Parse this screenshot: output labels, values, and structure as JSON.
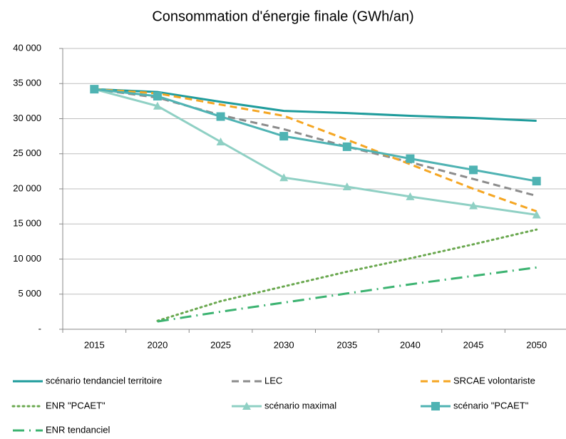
{
  "chart_data": {
    "type": "line",
    "title": "Consommation d'énergie finale (GWh/an)",
    "categories": [
      "2015",
      "2020",
      "2025",
      "2030",
      "2035",
      "2040",
      "2045",
      "2050"
    ],
    "series": [
      {
        "name": "scénario tendanciel territoire",
        "color": "#1f9c9c",
        "style": "solid",
        "values": [
          34200,
          33800,
          32400,
          31100,
          30800,
          30400,
          30100,
          29700
        ]
      },
      {
        "name": "LEC",
        "color": "#8c8c8c",
        "style": "dashed",
        "values": [
          34200,
          33000,
          30500,
          28500,
          26000,
          23800,
          21400,
          19000
        ]
      },
      {
        "name": "SRCAE volontariste",
        "color": "#f5a623",
        "style": "dashed",
        "values": [
          34200,
          33600,
          32000,
          30400,
          27000,
          23500,
          20000,
          16800
        ]
      },
      {
        "name": "ENR \"PCAET\"",
        "color": "#6aa84f",
        "style": "dotted",
        "values": [
          null,
          1200,
          4000,
          6100,
          8200,
          10100,
          12100,
          14200
        ]
      },
      {
        "name": "scénario maximal",
        "color": "#8fd0c4",
        "style": "solid",
        "marker": "triangle",
        "values": [
          34200,
          31800,
          26700,
          21600,
          20300,
          18900,
          17600,
          16300
        ]
      },
      {
        "name": "scénario \"PCAET\"",
        "color": "#4fb3b3",
        "style": "solid",
        "marker": "square",
        "values": [
          34200,
          33200,
          30300,
          27500,
          26000,
          24300,
          22700,
          21100
        ]
      },
      {
        "name": "ENR tendanciel",
        "color": "#3cb371",
        "style": "dashdot",
        "values": [
          null,
          1100,
          2500,
          3800,
          5100,
          6400,
          7600,
          8800
        ]
      }
    ],
    "ylim": [
      0,
      40000
    ],
    "yticks": [
      {
        "value": 0,
        "label": "-"
      },
      {
        "value": 5000,
        "label": "5 000"
      },
      {
        "value": 10000,
        "label": "10 000"
      },
      {
        "value": 15000,
        "label": "15 000"
      },
      {
        "value": 20000,
        "label": "20 000"
      },
      {
        "value": 25000,
        "label": "25 000"
      },
      {
        "value": 30000,
        "label": "30 000"
      },
      {
        "value": 35000,
        "label": "35 000"
      },
      {
        "value": 40000,
        "label": "40 000"
      }
    ],
    "grid": true,
    "legend": "bottom"
  }
}
